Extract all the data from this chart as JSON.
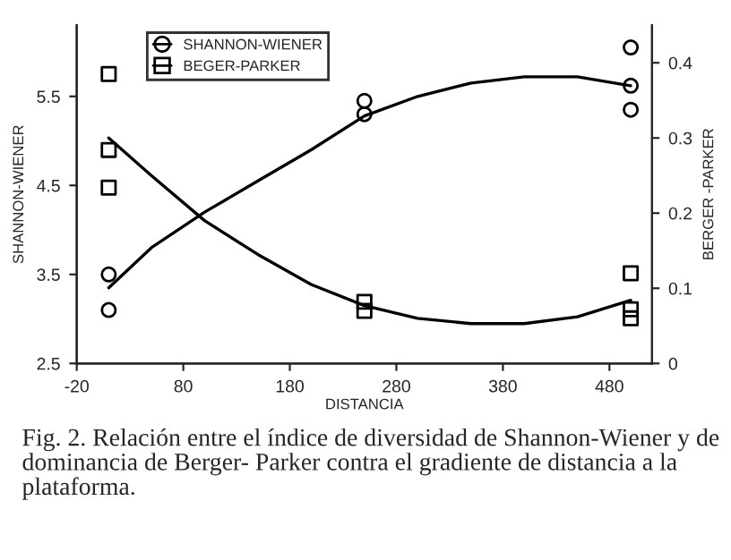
{
  "chart_data": {
    "type": "scatter",
    "xlabel": "DISTANCIA",
    "ylabel": "SHANNON-WIENER",
    "y2label": "BERGER -PARKER",
    "series": [
      {
        "name": "SHANNON-WIENER",
        "marker": "circle",
        "color": "#000000",
        "x": [
          10,
          10,
          250,
          250,
          500,
          500,
          500
        ],
        "values": [
          3.5,
          3.1,
          5.45,
          5.3,
          6.05,
          5.62,
          5.35
        ]
      },
      {
        "type": "line",
        "color": "#000000",
        "marker": "none",
        "x": [
          10,
          50,
          100,
          150,
          200,
          250,
          300,
          350,
          400,
          450,
          500
        ],
        "values": [
          3.35,
          3.8,
          4.2,
          4.55,
          4.9,
          5.28,
          5.5,
          5.65,
          5.72,
          5.72,
          5.62
        ]
      },
      {
        "name": "BEGER-PARKER",
        "marker": "square",
        "axis": "y2",
        "color": "#000000",
        "x": [
          10,
          10,
          10,
          250,
          250,
          500,
          500,
          500
        ],
        "values": [
          0.385,
          0.284,
          0.234,
          0.082,
          0.07,
          0.12,
          0.072,
          0.06
        ]
      },
      {
        "type": "line",
        "color": "#000000",
        "marker": "none",
        "axis": "y2",
        "x": [
          10,
          50,
          100,
          150,
          200,
          250,
          300,
          350,
          400,
          450,
          500
        ],
        "values": [
          0.3,
          0.25,
          0.19,
          0.145,
          0.105,
          0.077,
          0.06,
          0.053,
          0.053,
          0.062,
          0.084
        ]
      }
    ],
    "xlim": [
      -20,
      520
    ],
    "xticks": [
      -20,
      80,
      180,
      280,
      380,
      480
    ],
    "ylim": [
      2.5,
      6.3
    ],
    "yticks": [
      2.5,
      3.5,
      4.5,
      5.5
    ],
    "y2lim": [
      0,
      0.45
    ],
    "y2ticks": [
      0,
      0.1,
      0.2,
      0.3,
      0.4
    ],
    "grid": false,
    "legend": "top",
    "annotations": [
      "Fig. 2. Relación entre el índice de diversidad de Shannon-Wiener y de dominancia de Berger- Parker contra el gradiente de distancia a la plataforma."
    ]
  }
}
